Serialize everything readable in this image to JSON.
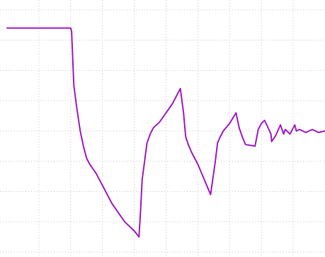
{
  "chart_data": {
    "type": "line",
    "title": "",
    "xlabel": "",
    "ylabel": "",
    "grid": true,
    "grid_divisions": {
      "x": 10,
      "y": 8
    },
    "xlim": [
      0,
      10
    ],
    "ylim": [
      -4,
      4
    ],
    "series": [
      {
        "color": "#a31cc6",
        "x": [
          0.0,
          2.0,
          2.03,
          2.1,
          2.2,
          2.3,
          2.4,
          2.5,
          2.6,
          2.8,
          3.0,
          3.3,
          3.7,
          4.0,
          4.15,
          4.2,
          4.25,
          4.3,
          4.35,
          4.4,
          4.5,
          4.6,
          4.8,
          5.0,
          5.2,
          5.45,
          5.55,
          5.62,
          5.7,
          5.8,
          6.0,
          6.2,
          6.4,
          6.55,
          6.62,
          6.7,
          6.8,
          7.0,
          7.2,
          7.3,
          7.4,
          7.5,
          7.8,
          7.9,
          8.0,
          8.1,
          8.3,
          8.32,
          8.45,
          8.6,
          8.7,
          8.75,
          8.8,
          8.85,
          8.9,
          9.05,
          9.1,
          9.2,
          9.4,
          9.6,
          9.8,
          10.0
        ],
        "values": [
          3.4,
          3.4,
          3.3,
          1.5,
          0.7,
          0.0,
          -0.5,
          -0.9,
          -1.1,
          -1.4,
          -1.8,
          -2.4,
          -3.0,
          -3.3,
          -3.5,
          -2.6,
          -1.6,
          -1.2,
          -0.8,
          -0.4,
          -0.1,
          0.1,
          0.3,
          0.6,
          0.9,
          1.4,
          0.6,
          -0.2,
          -0.45,
          -0.7,
          -1.1,
          -1.6,
          -2.1,
          -1.0,
          -0.4,
          -0.2,
          0.0,
          0.25,
          0.6,
          0.1,
          -0.2,
          -0.45,
          -0.5,
          0.05,
          0.25,
          0.35,
          -0.1,
          -0.35,
          -0.15,
          0.2,
          -0.1,
          0.05,
          0.0,
          -0.05,
          -0.1,
          0.2,
          0.0,
          0.05,
          -0.05,
          0.05,
          -0.05,
          0.0
        ]
      }
    ]
  }
}
